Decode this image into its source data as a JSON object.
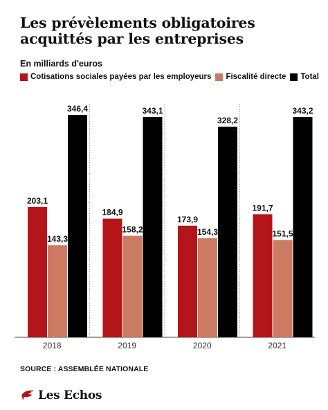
{
  "title": "Les prévèlements obligatoires acquittés par les entreprises",
  "subtitle": "En milliards d'euros",
  "source": "SOURCE : ASSEMBLÉE NATIONALE",
  "brand": "Les Echos",
  "colors": {
    "cotisations": "#b4151b",
    "fiscalite": "#cd7a63",
    "total": "#000000"
  },
  "chart_data": {
    "type": "bar",
    "title": "Les prévèlements obligatoires acquittés par les entreprises",
    "ylabel": "En milliards d'euros",
    "categories": [
      "2018",
      "2019",
      "2020",
      "2021"
    ],
    "series": [
      {
        "name": "Cotisations sociales payées par les employeurs",
        "values": [
          203.1,
          184.9,
          173.9,
          191.7
        ],
        "labels": [
          "203,1",
          "184,9",
          "173,9",
          "191,7"
        ],
        "color": "#b4151b"
      },
      {
        "name": "Fiscalité directe",
        "values": [
          143.3,
          158.2,
          154.3,
          151.5
        ],
        "labels": [
          "143,3",
          "158,2",
          "154,3",
          "151,5"
        ],
        "color": "#cd7a63"
      },
      {
        "name": "Total",
        "values": [
          346.4,
          343.1,
          328.2,
          343.2
        ],
        "labels": [
          "346,4",
          "343,1",
          "328,2",
          "343,2"
        ],
        "color": "#000000"
      }
    ],
    "ylim": [
      0,
      400
    ],
    "grid": false,
    "legend": "top"
  }
}
